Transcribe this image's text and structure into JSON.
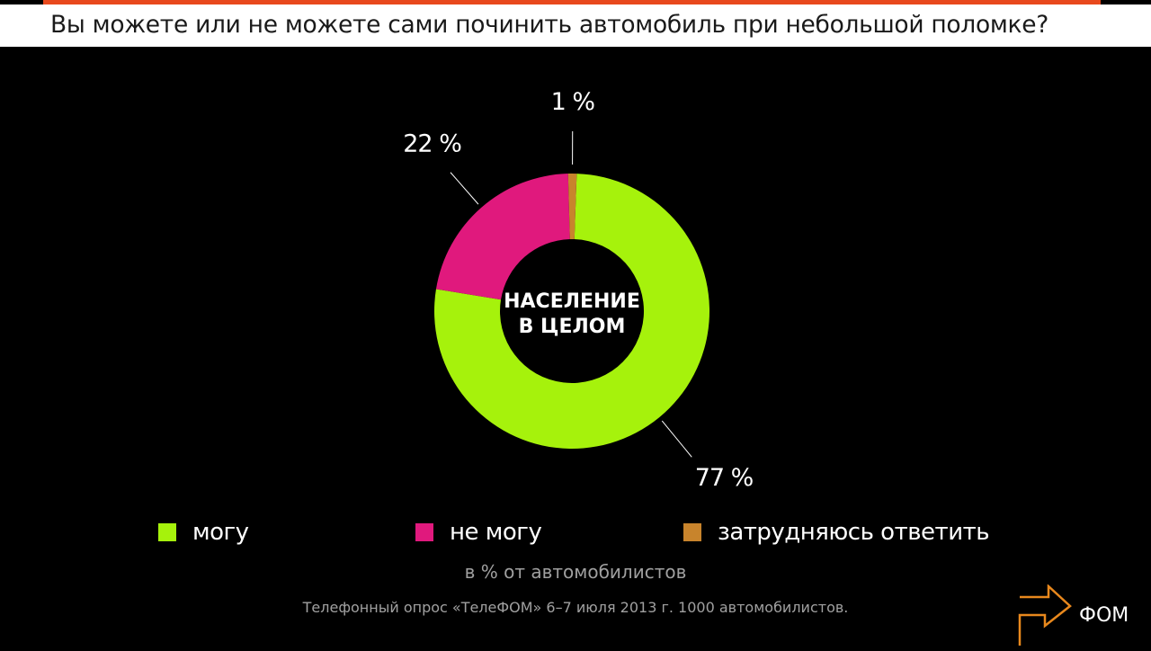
{
  "title": "Вы можете или не можете сами починить автомобиль при небольшой поломке?",
  "chart_data": {
    "type": "pie",
    "donut": true,
    "center_label": [
      "НАСЕЛЕНИЕ",
      "В ЦЕЛОМ"
    ],
    "categories": [
      "могу",
      "не могу",
      "затрудняюсь ответить"
    ],
    "values": [
      77,
      22,
      1
    ],
    "data_labels": [
      "77 %",
      "22 %",
      "1 %"
    ],
    "colors": [
      "#a6f20c",
      "#e0197d",
      "#c8842c"
    ],
    "legend_position": "bottom",
    "unit_note": "в % от автомобилистов",
    "source": "Телефонный опрос «ТелеФОМ» 6–7 июля 2013 г. 1000 автомобилистов."
  },
  "logo": {
    "text": "ФОМ",
    "icon": "fom-logo-icon",
    "color": "#e8881d"
  },
  "colors": {
    "accent_bar": "#e8491d",
    "background": "#000000",
    "title_strip": "#ffffff"
  }
}
